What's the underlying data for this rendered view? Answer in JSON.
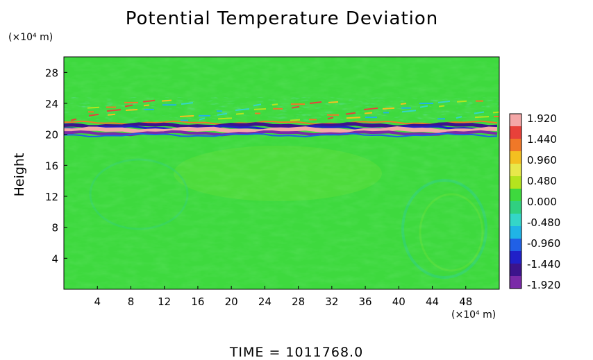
{
  "chart_data": {
    "type": "heatmap",
    "title": "Potential Temperature Deviation",
    "ylabel": "Height",
    "xlabel": "",
    "x_unit": "(×10⁴ m)",
    "y_unit": "(×10⁴ m)",
    "xlim": [
      0,
      52
    ],
    "ylim": [
      0,
      30
    ],
    "x_ticks": [
      4,
      8,
      12,
      16,
      20,
      24,
      28,
      32,
      36,
      40,
      44,
      48
    ],
    "y_ticks": [
      4,
      8,
      12,
      16,
      20,
      24,
      28
    ],
    "colorbar": {
      "ticks": [
        "1.920",
        "1.440",
        "0.960",
        "0.480",
        "0.000",
        "-0.480",
        "-0.960",
        "-1.440",
        "-1.920"
      ],
      "range": [
        -1.92,
        1.92
      ],
      "colors": [
        "#f4a7a7",
        "#e8413a",
        "#f07828",
        "#f4c020",
        "#e8e84a",
        "#b4e41e",
        "#3ed93e",
        "#30d080",
        "#34d6c8",
        "#20b4e6",
        "#2060e6",
        "#2020c8",
        "#3c148c",
        "#7a2aa8"
      ]
    },
    "field_description": [
      {
        "height_range": [
          19.8,
          21.6
        ],
        "value_range": [
          -1.92,
          1.92
        ],
        "note": "strong alternating band"
      },
      {
        "height_range": [
          21.6,
          24.5
        ],
        "value_range": [
          -0.96,
          1.44
        ],
        "note": "wave activity"
      },
      {
        "height_range": [
          0,
          19.8
        ],
        "value_range": [
          -0.48,
          0.48
        ],
        "note": "near zero"
      }
    ],
    "footer": "TIME = 1011768.0"
  }
}
